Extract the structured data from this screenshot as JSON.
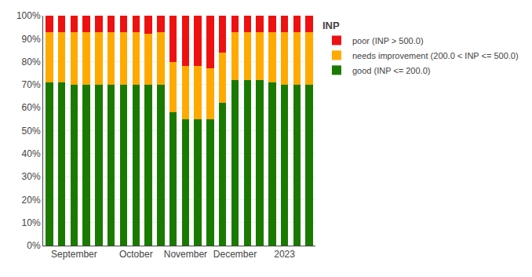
{
  "chart_data": {
    "type": "bar",
    "stacked": true,
    "title": "INP",
    "categories": [
      null,
      null,
      "September",
      null,
      null,
      null,
      null,
      "October",
      null,
      null,
      null,
      "November",
      null,
      null,
      null,
      "December",
      null,
      null,
      null,
      "2023",
      null,
      null
    ],
    "series": [
      {
        "name": "good (INP <= 200.0)",
        "color": "#1a7a00",
        "values": [
          0.71,
          0.71,
          0.7,
          0.7,
          0.7,
          0.7,
          0.7,
          0.7,
          0.7,
          0.7,
          0.58,
          0.55,
          0.55,
          0.55,
          0.62,
          0.72,
          0.72,
          0.72,
          0.71,
          0.7,
          0.7,
          0.7
        ]
      },
      {
        "name": "needs improvement (200.0 < INP <= 500.0)",
        "color": "#ffaa00",
        "values": [
          0.22,
          0.22,
          0.23,
          0.23,
          0.23,
          0.23,
          0.23,
          0.23,
          0.22,
          0.23,
          0.22,
          0.23,
          0.23,
          0.22,
          0.22,
          0.21,
          0.21,
          0.21,
          0.22,
          0.23,
          0.23,
          0.23
        ]
      },
      {
        "name": "poor (INP > 500.0)",
        "color": "#ee1111",
        "values": [
          0.07,
          0.07,
          0.07,
          0.07,
          0.07,
          0.07,
          0.07,
          0.07,
          0.08,
          0.07,
          0.2,
          0.22,
          0.22,
          0.23,
          0.16,
          0.07,
          0.07,
          0.07,
          0.07,
          0.07,
          0.07,
          0.07
        ]
      }
    ],
    "ylim": [
      0,
      1.0
    ],
    "yticks": [
      {
        "value": 0,
        "label": "0%"
      },
      {
        "value": 0.1,
        "label": "10%"
      },
      {
        "value": 0.2,
        "label": "20%"
      },
      {
        "value": 0.3,
        "label": "30%"
      },
      {
        "value": 0.4,
        "label": "40%"
      },
      {
        "value": 0.5,
        "label": "50%"
      },
      {
        "value": 0.6,
        "label": "60%"
      },
      {
        "value": 0.7,
        "label": "70%"
      },
      {
        "value": 0.8,
        "label": "80%"
      },
      {
        "value": 0.9,
        "label": "90%"
      },
      {
        "value": 1.0,
        "label": "100%"
      }
    ],
    "grid": true,
    "legend": "right"
  }
}
